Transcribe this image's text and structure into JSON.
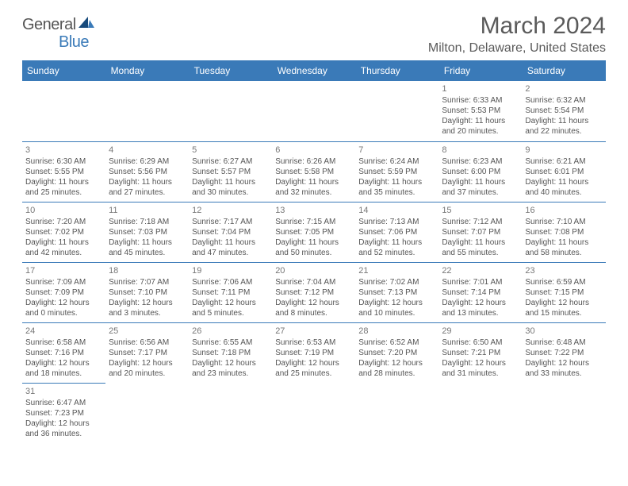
{
  "logo": {
    "text1": "General",
    "text2": "Blue"
  },
  "title": "March 2024",
  "location": "Milton, Delaware, United States",
  "weekdays": [
    "Sunday",
    "Monday",
    "Tuesday",
    "Wednesday",
    "Thursday",
    "Friday",
    "Saturday"
  ],
  "colors": {
    "header_bg": "#3a7ab8",
    "header_fg": "#ffffff",
    "text": "#555555",
    "rule": "#3a7ab8"
  },
  "weeks": [
    [
      null,
      null,
      null,
      null,
      null,
      {
        "n": "1",
        "sr": "6:33 AM",
        "ss": "5:53 PM",
        "dl": "11 hours and 20 minutes."
      },
      {
        "n": "2",
        "sr": "6:32 AM",
        "ss": "5:54 PM",
        "dl": "11 hours and 22 minutes."
      }
    ],
    [
      {
        "n": "3",
        "sr": "6:30 AM",
        "ss": "5:55 PM",
        "dl": "11 hours and 25 minutes."
      },
      {
        "n": "4",
        "sr": "6:29 AM",
        "ss": "5:56 PM",
        "dl": "11 hours and 27 minutes."
      },
      {
        "n": "5",
        "sr": "6:27 AM",
        "ss": "5:57 PM",
        "dl": "11 hours and 30 minutes."
      },
      {
        "n": "6",
        "sr": "6:26 AM",
        "ss": "5:58 PM",
        "dl": "11 hours and 32 minutes."
      },
      {
        "n": "7",
        "sr": "6:24 AM",
        "ss": "5:59 PM",
        "dl": "11 hours and 35 minutes."
      },
      {
        "n": "8",
        "sr": "6:23 AM",
        "ss": "6:00 PM",
        "dl": "11 hours and 37 minutes."
      },
      {
        "n": "9",
        "sr": "6:21 AM",
        "ss": "6:01 PM",
        "dl": "11 hours and 40 minutes."
      }
    ],
    [
      {
        "n": "10",
        "sr": "7:20 AM",
        "ss": "7:02 PM",
        "dl": "11 hours and 42 minutes."
      },
      {
        "n": "11",
        "sr": "7:18 AM",
        "ss": "7:03 PM",
        "dl": "11 hours and 45 minutes."
      },
      {
        "n": "12",
        "sr": "7:17 AM",
        "ss": "7:04 PM",
        "dl": "11 hours and 47 minutes."
      },
      {
        "n": "13",
        "sr": "7:15 AM",
        "ss": "7:05 PM",
        "dl": "11 hours and 50 minutes."
      },
      {
        "n": "14",
        "sr": "7:13 AM",
        "ss": "7:06 PM",
        "dl": "11 hours and 52 minutes."
      },
      {
        "n": "15",
        "sr": "7:12 AM",
        "ss": "7:07 PM",
        "dl": "11 hours and 55 minutes."
      },
      {
        "n": "16",
        "sr": "7:10 AM",
        "ss": "7:08 PM",
        "dl": "11 hours and 58 minutes."
      }
    ],
    [
      {
        "n": "17",
        "sr": "7:09 AM",
        "ss": "7:09 PM",
        "dl": "12 hours and 0 minutes."
      },
      {
        "n": "18",
        "sr": "7:07 AM",
        "ss": "7:10 PM",
        "dl": "12 hours and 3 minutes."
      },
      {
        "n": "19",
        "sr": "7:06 AM",
        "ss": "7:11 PM",
        "dl": "12 hours and 5 minutes."
      },
      {
        "n": "20",
        "sr": "7:04 AM",
        "ss": "7:12 PM",
        "dl": "12 hours and 8 minutes."
      },
      {
        "n": "21",
        "sr": "7:02 AM",
        "ss": "7:13 PM",
        "dl": "12 hours and 10 minutes."
      },
      {
        "n": "22",
        "sr": "7:01 AM",
        "ss": "7:14 PM",
        "dl": "12 hours and 13 minutes."
      },
      {
        "n": "23",
        "sr": "6:59 AM",
        "ss": "7:15 PM",
        "dl": "12 hours and 15 minutes."
      }
    ],
    [
      {
        "n": "24",
        "sr": "6:58 AM",
        "ss": "7:16 PM",
        "dl": "12 hours and 18 minutes."
      },
      {
        "n": "25",
        "sr": "6:56 AM",
        "ss": "7:17 PM",
        "dl": "12 hours and 20 minutes."
      },
      {
        "n": "26",
        "sr": "6:55 AM",
        "ss": "7:18 PM",
        "dl": "12 hours and 23 minutes."
      },
      {
        "n": "27",
        "sr": "6:53 AM",
        "ss": "7:19 PM",
        "dl": "12 hours and 25 minutes."
      },
      {
        "n": "28",
        "sr": "6:52 AM",
        "ss": "7:20 PM",
        "dl": "12 hours and 28 minutes."
      },
      {
        "n": "29",
        "sr": "6:50 AM",
        "ss": "7:21 PM",
        "dl": "12 hours and 31 minutes."
      },
      {
        "n": "30",
        "sr": "6:48 AM",
        "ss": "7:22 PM",
        "dl": "12 hours and 33 minutes."
      }
    ],
    [
      {
        "n": "31",
        "sr": "6:47 AM",
        "ss": "7:23 PM",
        "dl": "12 hours and 36 minutes."
      },
      null,
      null,
      null,
      null,
      null,
      null
    ]
  ],
  "labels": {
    "sunrise": "Sunrise:",
    "sunset": "Sunset:",
    "daylight": "Daylight:"
  }
}
